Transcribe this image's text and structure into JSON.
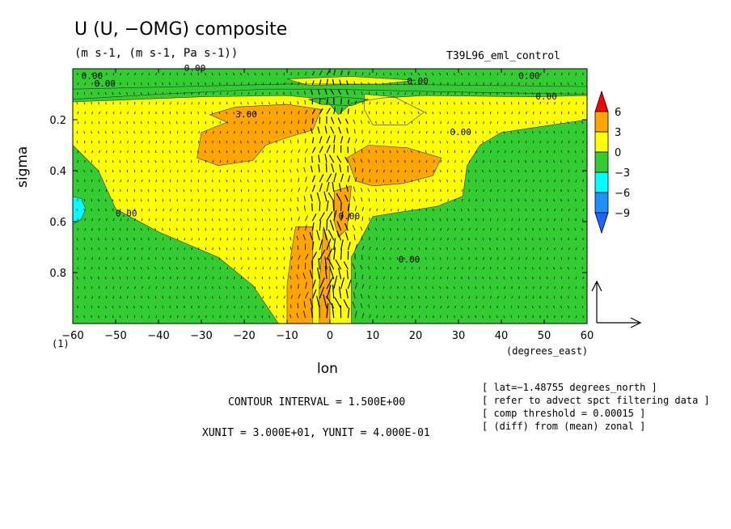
{
  "header": {
    "title": "U (U, −OMG) composite",
    "units": "(m s-1, (m s-1, Pa s-1))",
    "run_name": "T39L96_eml_control"
  },
  "footer": {
    "contour_interval": "CONTOUR INTERVAL = 1.500E+00",
    "vector_units": "XUNIT = 3.000E+01, YUNIT = 4.000E-01",
    "notes": [
      "[ lat=−1.48755 degrees_north ]",
      "[ refer to advect spct filtering data ]",
      "[ comp threshold = 0.00015 ]",
      "[ (diff) from (mean) zonal ]"
    ]
  },
  "colorbar": {
    "levels": [
      "6",
      "3",
      "0",
      "−3",
      "−6",
      "−9"
    ],
    "colors": [
      "#ff0000",
      "#ffa500",
      "#ffff00",
      "#33cc33",
      "#00ffff",
      "#1e90ff",
      "#1e64ff"
    ]
  },
  "chart_data": {
    "type": "heatmap",
    "subtype": "filled contour with vector overlay",
    "title": "U (U, −OMG) composite",
    "xlabel": "lon",
    "xunits": "(degrees_east)",
    "ylabel": "sigma",
    "x_ticks": [
      "−60",
      "−50",
      "−40",
      "−30",
      "−20",
      "−10",
      "0",
      "10",
      "20",
      "30",
      "40",
      "50",
      "60"
    ],
    "y_ticks": [
      "0.2",
      "0.4",
      "0.6",
      "0.8"
    ],
    "xlim": [
      -60,
      60
    ],
    "ylim": [
      1.0,
      0.0
    ],
    "y_inverted": true,
    "corner_label": "(1)",
    "contour_interval": 1.5,
    "contour_labels": [
      {
        "text": "0.00",
        "x": -34,
        "y": 0.01
      },
      {
        "text": "0.00",
        "x": -58,
        "y": 0.04
      },
      {
        "text": "0.00",
        "x": -55,
        "y": 0.07
      },
      {
        "text": "3.00",
        "x": -22,
        "y": 0.19
      },
      {
        "text": "0.00",
        "x": 18,
        "y": 0.06
      },
      {
        "text": "0.00",
        "x": 28,
        "y": 0.26
      },
      {
        "text": "0.00",
        "x": 48,
        "y": 0.12
      },
      {
        "text": "0.00",
        "x": 44,
        "y": 0.04
      },
      {
        "text": "0.00",
        "x": -50,
        "y": 0.58
      },
      {
        "text": "0.00",
        "x": 2,
        "y": 0.59
      },
      {
        "text": "0.00",
        "x": 16,
        "y": 0.76
      }
    ],
    "regions": [
      {
        "name": "base",
        "range": "0 to -3",
        "color": "#33cc33",
        "poly": [
          [
            -60,
            0.0
          ],
          [
            60,
            0.0
          ],
          [
            60,
            1.0
          ],
          [
            -60,
            1.0
          ]
        ]
      },
      {
        "name": "positive-main",
        "range": "0 to 3",
        "color": "#ffff00",
        "poly": [
          [
            -60,
            0.12
          ],
          [
            -40,
            0.1
          ],
          [
            -15,
            0.08
          ],
          [
            0,
            0.08
          ],
          [
            25,
            0.09
          ],
          [
            60,
            0.1
          ],
          [
            60,
            0.2
          ],
          [
            52,
            0.22
          ],
          [
            40,
            0.25
          ],
          [
            35,
            0.3
          ],
          [
            32,
            0.38
          ],
          [
            31,
            0.5
          ],
          [
            25,
            0.54
          ],
          [
            10,
            0.58
          ],
          [
            5,
            0.74
          ],
          [
            5,
            1.0
          ],
          [
            -12,
            1.0
          ],
          [
            -18,
            0.85
          ],
          [
            -26,
            0.74
          ],
          [
            -40,
            0.64
          ],
          [
            -50,
            0.55
          ],
          [
            -54,
            0.4
          ],
          [
            -60,
            0.3
          ]
        ]
      },
      {
        "name": "negative-upper",
        "range": "0 to -3",
        "color": "#33cc33",
        "poly": [
          [
            -60,
            0.08
          ],
          [
            -10,
            0.06
          ],
          [
            8,
            0.06
          ],
          [
            60,
            0.07
          ],
          [
            60,
            0.105
          ],
          [
            48,
            0.11
          ],
          [
            22,
            0.105
          ],
          [
            12,
            0.115
          ],
          [
            5,
            0.135
          ],
          [
            2,
            0.18
          ],
          [
            -1,
            0.12
          ],
          [
            -10,
            0.105
          ],
          [
            -30,
            0.11
          ],
          [
            -60,
            0.13
          ]
        ]
      },
      {
        "name": "positive-right",
        "range": "0 to 3",
        "color": "#ffff00",
        "poly": [
          [
            8,
            0.1
          ],
          [
            15,
            0.11
          ],
          [
            22,
            0.17
          ],
          [
            18,
            0.22
          ],
          [
            10,
            0.22
          ],
          [
            8,
            0.16
          ]
        ]
      },
      {
        "name": "positive-top",
        "range": "0 to 3",
        "color": "#ffff00",
        "poly": [
          [
            -10,
            0.04
          ],
          [
            5,
            0.03
          ],
          [
            20,
            0.045
          ],
          [
            12,
            0.06
          ],
          [
            -5,
            0.065
          ]
        ]
      },
      {
        "name": "negative-pocket",
        "range": "0 to -3",
        "color": "#33cc33",
        "poly": [
          [
            -5,
            0.12
          ],
          [
            2,
            0.11
          ],
          [
            9,
            0.12
          ],
          [
            5,
            0.145
          ],
          [
            -2,
            0.14
          ]
        ]
      },
      {
        "name": "strong-upper",
        "range": "3 to 6",
        "color": "#ffa500",
        "poly": [
          [
            -28,
            0.18
          ],
          [
            -22,
            0.15
          ],
          [
            -10,
            0.14
          ],
          [
            -2,
            0.16
          ],
          [
            -4,
            0.24
          ],
          [
            -10,
            0.27
          ],
          [
            -15,
            0.3
          ],
          [
            -18,
            0.36
          ],
          [
            -26,
            0.38
          ],
          [
            -31,
            0.35
          ],
          [
            -30,
            0.25
          ],
          [
            -24,
            0.21
          ]
        ]
      },
      {
        "name": "strong-right",
        "range": "3 to 6",
        "color": "#ffa500",
        "poly": [
          [
            4,
            0.35
          ],
          [
            9,
            0.3
          ],
          [
            18,
            0.31
          ],
          [
            26,
            0.35
          ],
          [
            24,
            0.42
          ],
          [
            17,
            0.45
          ],
          [
            10,
            0.46
          ],
          [
            6,
            0.44
          ]
        ]
      },
      {
        "name": "strong-column",
        "range": "3 to 6",
        "color": "#ffa500",
        "poly": [
          [
            1,
            0.48
          ],
          [
            5,
            0.46
          ],
          [
            4,
            0.63
          ],
          [
            2,
            0.66
          ],
          [
            1,
            0.6
          ]
        ]
      },
      {
        "name": "strong-column-left",
        "range": "3 to 6",
        "color": "#ffa500",
        "poly": [
          [
            -8,
            0.62
          ],
          [
            -4,
            0.62
          ],
          [
            -4,
            1.0
          ],
          [
            -10,
            1.0
          ],
          [
            -10,
            0.85
          ],
          [
            -9,
            0.72
          ]
        ]
      },
      {
        "name": "strong-column-thin",
        "range": "3 to 6",
        "color": "#ffa500",
        "poly": [
          [
            -1.5,
            0.62
          ],
          [
            0,
            0.7
          ],
          [
            0,
            1.0
          ],
          [
            -2.5,
            1.0
          ],
          [
            -2.5,
            0.85
          ]
        ]
      },
      {
        "name": "weak-negative-west",
        "range": "-3 to -6",
        "color": "#00ffff",
        "poly": [
          [
            -60,
            0.5
          ],
          [
            -58,
            0.51
          ],
          [
            -57,
            0.55
          ],
          [
            -58,
            0.59
          ],
          [
            -60,
            0.61
          ]
        ]
      }
    ]
  }
}
